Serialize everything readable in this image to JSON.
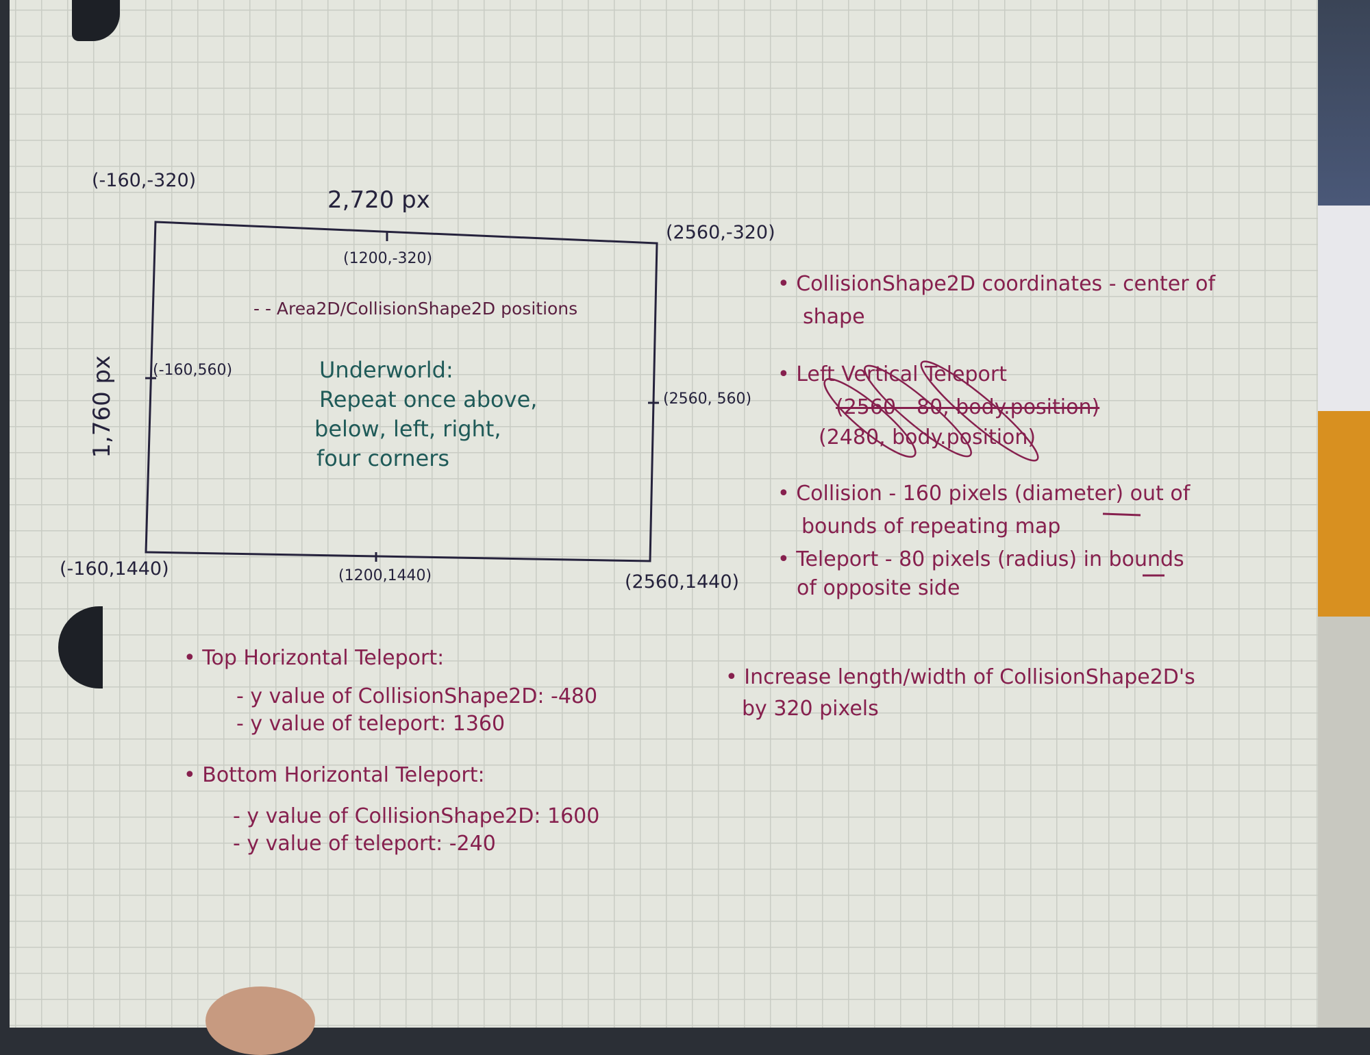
{
  "diagram": {
    "top_left": "(-160,-320)",
    "width_label": "2,720 px",
    "top_mid": "(1200,-320)",
    "top_right": "(2560,-320)",
    "legend": "- - Area2D/CollisionShape2D positions",
    "height_label": "1,760 px",
    "mid_left": "(-160,560)",
    "mid_right": "(2560, 560)",
    "underworld": [
      "Underworld:",
      "Repeat once above,",
      "below, left, right,",
      "four corners"
    ],
    "bottom_left": "(-160,1440)",
    "bottom_mid": "(1200,1440)",
    "bottom_right": "(2560,1440)"
  },
  "right_notes": [
    "• CollisionShape2D coordinates - center of",
    "shape",
    "• Left Vertical Teleport",
    "(2560 - 80, body.position)",
    "(2480, body.position)",
    "• Collision - 160 pixels (diameter) out of",
    "bounds of repeating map",
    "• Teleport - 80 pixels (radius) in bounds",
    "of opposite side"
  ],
  "increase_note": [
    "• Increase length/width of CollisionShape2D's",
    "by 320 pixels"
  ],
  "bottom_notes": {
    "top_title": "• Top Horizontal Teleport:",
    "top_items": [
      "- y value of CollisionShape2D: -480",
      "- y value of teleport: 1360"
    ],
    "bottom_title": "• Bottom Horizontal Teleport:",
    "bottom_items": [
      "- y value of CollisionShape2D: 1600",
      "- y value of teleport: -240"
    ]
  },
  "colors": {
    "paper": "#e4e6de",
    "navy_ink": "#25223c",
    "magenta_ink": "#86204e",
    "teal_ink": "#1f5a58"
  }
}
